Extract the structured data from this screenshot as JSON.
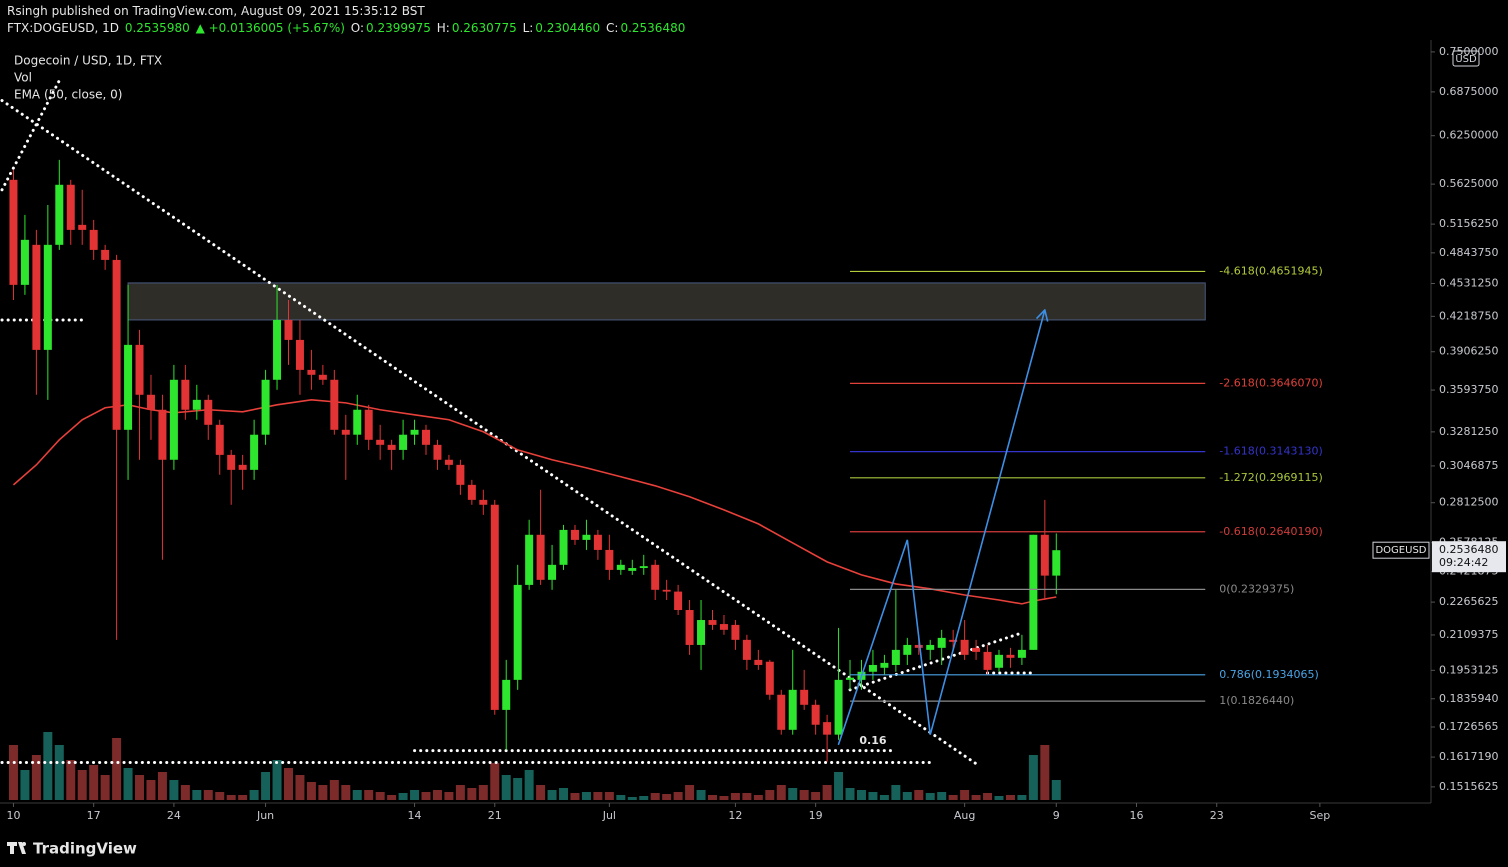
{
  "header": {
    "published": "Rsingh published on TradingView.com, August 09, 2021 15:35:12 BST",
    "symbol": "FTX:DOGEUSD, 1D",
    "last": "0.2535980",
    "change": "▲ +0.0136005 (+5.67%)",
    "ohlc_labels": [
      "O:",
      "H:",
      "L:",
      "C:"
    ],
    "ohlc_values": [
      "0.2399975",
      "0.2630775",
      "0.2304460",
      "0.2536480"
    ]
  },
  "chart_data": {
    "type": "candlestick",
    "title": "Dogecoin / USD, 1D, FTX",
    "legend_items": [
      "Vol",
      "EMA (50, close, 0)"
    ],
    "currency": "USD",
    "log_scale": true,
    "grid": false,
    "up_color": "#2ee62e",
    "down_color": "#e23434",
    "x": [
      "2021-05-10",
      "2021-05-11",
      "2021-05-12",
      "2021-05-13",
      "2021-05-14",
      "2021-05-15",
      "2021-05-16",
      "2021-05-17",
      "2021-05-18",
      "2021-05-19",
      "2021-05-20",
      "2021-05-21",
      "2021-05-22",
      "2021-05-23",
      "2021-05-24",
      "2021-05-25",
      "2021-05-26",
      "2021-05-27",
      "2021-05-28",
      "2021-05-29",
      "2021-05-30",
      "2021-05-31",
      "2021-06-01",
      "2021-06-02",
      "2021-06-03",
      "2021-06-04",
      "2021-06-05",
      "2021-06-06",
      "2021-06-07",
      "2021-06-08",
      "2021-06-09",
      "2021-06-10",
      "2021-06-11",
      "2021-06-12",
      "2021-06-13",
      "2021-06-14",
      "2021-06-15",
      "2021-06-16",
      "2021-06-17",
      "2021-06-18",
      "2021-06-19",
      "2021-06-20",
      "2021-06-21",
      "2021-06-22",
      "2021-06-23",
      "2021-06-24",
      "2021-06-25",
      "2021-06-26",
      "2021-06-27",
      "2021-06-28",
      "2021-06-29",
      "2021-06-30",
      "2021-07-01",
      "2021-07-02",
      "2021-07-03",
      "2021-07-04",
      "2021-07-05",
      "2021-07-06",
      "2021-07-07",
      "2021-07-08",
      "2021-07-09",
      "2021-07-10",
      "2021-07-11",
      "2021-07-12",
      "2021-07-13",
      "2021-07-14",
      "2021-07-15",
      "2021-07-16",
      "2021-07-17",
      "2021-07-18",
      "2021-07-19",
      "2021-07-20",
      "2021-07-21",
      "2021-07-22",
      "2021-07-23",
      "2021-07-24",
      "2021-07-25",
      "2021-07-26",
      "2021-07-27",
      "2021-07-28",
      "2021-07-29",
      "2021-07-30",
      "2021-07-31",
      "2021-08-01",
      "2021-08-02",
      "2021-08-03",
      "2021-08-04",
      "2021-08-05",
      "2021-08-06",
      "2021-08-07",
      "2021-08-08",
      "2021-08-09"
    ],
    "open": [
      0.5678,
      0.4518,
      0.4929,
      0.3922,
      0.4929,
      0.5617,
      0.5148,
      0.5092,
      0.4875,
      0.477,
      0.3296,
      0.3965,
      0.3557,
      0.3443,
      0.3088,
      0.3675,
      0.3443,
      0.3518,
      0.3332,
      0.3121,
      0.3054,
      0.3021,
      0.3261,
      0.3675,
      0.4186,
      0.4008,
      0.3755,
      0.3715,
      0.3675,
      0.3296,
      0.3261,
      0.3443,
      0.3225,
      0.319,
      0.3155,
      0.3261,
      0.3296,
      0.319,
      0.3088,
      0.3054,
      0.2924,
      0.283,
      0.28,
      0.1792,
      0.1913,
      0.2352,
      0.2623,
      0.2378,
      0.2457,
      0.2651,
      0.2594,
      0.2623,
      0.2538,
      0.243,
      0.2425,
      0.244,
      0.2457,
      0.2327,
      0.2318,
      0.2227,
      0.2064,
      0.2179,
      0.216,
      0.2156,
      0.2087,
      0.1998,
      0.199,
      0.1852,
      0.1716,
      0.1872,
      0.1812,
      0.1745,
      0.1698,
      0.1913,
      0.1913,
      0.1947,
      0.1964,
      0.1976,
      0.202,
      0.2064,
      0.2042,
      0.2051,
      0.2087,
      0.2087,
      0.2051,
      0.2033,
      0.1964,
      0.202,
      0.2007,
      0.2042,
      0.2623,
      0.2399975
    ],
    "high": [
      0.5803,
      0.5261,
      0.5092,
      0.5376,
      0.593,
      0.5678,
      0.5556,
      0.5204,
      0.4929,
      0.4822,
      0.4518,
      0.4096,
      0.3715,
      0.3557,
      0.3796,
      0.3796,
      0.3635,
      0.3557,
      0.3369,
      0.3155,
      0.3121,
      0.3369,
      0.3755,
      0.4518,
      0.4372,
      0.4186,
      0.3922,
      0.3796,
      0.3755,
      0.3405,
      0.3557,
      0.348,
      0.3332,
      0.3225,
      0.3369,
      0.3369,
      0.3332,
      0.3225,
      0.3121,
      0.3088,
      0.2956,
      0.2893,
      0.283,
      0.1998,
      0.2457,
      0.271,
      0.2893,
      0.2566,
      0.268,
      0.268,
      0.271,
      0.2651,
      0.2623,
      0.2484,
      0.2484,
      0.2511,
      0.2484,
      0.2378,
      0.2352,
      0.2276,
      0.2276,
      0.2227,
      0.2203,
      0.2179,
      0.211,
      0.2042,
      0.1998,
      0.1872,
      0.2042,
      0.1955,
      0.1832,
      0.1773,
      0.2142,
      0.1998,
      0.1998,
      0.2042,
      0.202,
      0.2327,
      0.2096,
      0.211,
      0.2087,
      0.2133,
      0.2133,
      0.2179,
      0.2087,
      0.2064,
      0.2042,
      0.2051,
      0.211,
      0.2623,
      0.283,
      0.2630775
    ],
    "low": [
      0.4372,
      0.4421,
      0.3557,
      0.3518,
      0.4875,
      0.4929,
      0.4929,
      0.477,
      0.4668,
      0.2087,
      0.2956,
      0.3088,
      0.3225,
      0.2484,
      0.3021,
      0.3369,
      0.3369,
      0.3225,
      0.2989,
      0.28,
      0.2893,
      0.2956,
      0.319,
      0.3596,
      0.3796,
      0.3557,
      0.3596,
      0.3635,
      0.3261,
      0.2956,
      0.319,
      0.3155,
      0.3088,
      0.3021,
      0.3088,
      0.319,
      0.3121,
      0.3021,
      0.3021,
      0.2861,
      0.28,
      0.2739,
      0.1773,
      0.1643,
      0.1872,
      0.2327,
      0.2352,
      0.2327,
      0.243,
      0.2566,
      0.2538,
      0.2484,
      0.2378,
      0.2404,
      0.2404,
      0.2404,
      0.2276,
      0.2276,
      0.2203,
      0.202,
      0.1955,
      0.2133,
      0.211,
      0.2042,
      0.1955,
      0.1955,
      0.1832,
      0.1698,
      0.1698,
      0.1792,
      0.1698,
      0.1601,
      0.1679,
      0.1872,
      0.1872,
      0.1913,
      0.1934,
      0.1947,
      0.1976,
      0.202,
      0.1998,
      0.1976,
      0.2042,
      0.1998,
      0.1998,
      0.1934,
      0.1947,
      0.1964,
      0.1976,
      0.2042,
      0.2276,
      0.230446
    ],
    "close": [
      0.4518,
      0.4983,
      0.3922,
      0.4929,
      0.5617,
      0.5092,
      0.5092,
      0.4875,
      0.477,
      0.3296,
      0.3965,
      0.3557,
      0.3443,
      0.3088,
      0.3675,
      0.3443,
      0.3518,
      0.3332,
      0.3121,
      0.3021,
      0.3021,
      0.3261,
      0.3675,
      0.4186,
      0.4008,
      0.3755,
      0.3715,
      0.3675,
      0.3296,
      0.3261,
      0.3443,
      0.3225,
      0.319,
      0.3155,
      0.3261,
      0.3296,
      0.319,
      0.3088,
      0.3054,
      0.2924,
      0.283,
      0.28,
      0.1792,
      0.1913,
      0.2352,
      0.2623,
      0.2378,
      0.2457,
      0.2651,
      0.2594,
      0.2623,
      0.2538,
      0.243,
      0.2457,
      0.244,
      0.245,
      0.2327,
      0.2318,
      0.2227,
      0.2064,
      0.2179,
      0.2156,
      0.2133,
      0.2087,
      0.1998,
      0.1976,
      0.1852,
      0.1716,
      0.1872,
      0.1812,
      0.1735,
      0.1698,
      0.1913,
      0.1922,
      0.1947,
      0.1976,
      0.1985,
      0.2042,
      0.2064,
      0.2051,
      0.2064,
      0.2096,
      0.2078,
      0.202,
      0.2033,
      0.1955,
      0.202,
      0.2007,
      0.2042,
      0.2623,
      0.24,
      0.253648
    ],
    "volume": {
      "ylim": [
        0,
        100
      ],
      "up_color": "#16615a",
      "down_color": "#7d2a2a",
      "values": [
        55,
        30,
        45,
        68,
        55,
        40,
        30,
        35,
        25,
        62,
        32,
        25,
        20,
        28,
        20,
        15,
        10,
        10,
        8,
        5,
        5,
        10,
        28,
        40,
        32,
        25,
        18,
        15,
        20,
        15,
        10,
        10,
        8,
        5,
        7,
        10,
        8,
        10,
        8,
        15,
        12,
        15,
        37,
        25,
        22,
        30,
        15,
        10,
        12,
        7,
        8,
        8,
        8,
        5,
        3,
        4,
        7,
        6,
        8,
        15,
        10,
        5,
        4,
        7,
        7,
        5,
        10,
        15,
        12,
        10,
        8,
        15,
        28,
        12,
        10,
        8,
        5,
        15,
        8,
        10,
        7,
        8,
        5,
        10,
        5,
        7,
        4,
        5,
        5,
        45,
        55,
        20
      ]
    },
    "ema": {
      "color": "#e8403a",
      "x": [
        "2021-05-10",
        "2021-05-12",
        "2021-05-14",
        "2021-05-16",
        "2021-05-18",
        "2021-05-20",
        "2021-05-22",
        "2021-05-24",
        "2021-05-27",
        "2021-05-30",
        "2021-06-02",
        "2021-06-05",
        "2021-06-08",
        "2021-06-11",
        "2021-06-14",
        "2021-06-17",
        "2021-06-20",
        "2021-06-23",
        "2021-06-26",
        "2021-06-29",
        "2021-07-02",
        "2021-07-05",
        "2021-07-08",
        "2021-07-11",
        "2021-07-14",
        "2021-07-17",
        "2021-07-20",
        "2021-07-23",
        "2021-07-26",
        "2021-07-29",
        "2021-08-01",
        "2021-08-04",
        "2021-08-06",
        "2021-08-07",
        "2021-08-09"
      ],
      "values": [
        0.2924,
        0.3054,
        0.3225,
        0.3369,
        0.3458,
        0.348,
        0.3443,
        0.342,
        0.3443,
        0.3428,
        0.348,
        0.3518,
        0.3495,
        0.3443,
        0.3405,
        0.3369,
        0.3282,
        0.3155,
        0.3088,
        0.3034,
        0.2976,
        0.2918,
        0.2849,
        0.2769,
        0.2686,
        0.2577,
        0.2473,
        0.2404,
        0.2357,
        0.2332,
        0.2301,
        0.2276,
        0.2257,
        0.2271,
        0.2291
      ]
    },
    "xlim": [
      "2021-05-09",
      "2021-09-10"
    ],
    "xticks": [
      {
        "value": "2021-05-10",
        "label": "10"
      },
      {
        "value": "2021-05-17",
        "label": "17"
      },
      {
        "value": "2021-05-24",
        "label": "24"
      },
      {
        "value": "2021-06-01",
        "label": "Jun"
      },
      {
        "value": "2021-06-14",
        "label": "14"
      },
      {
        "value": "2021-06-21",
        "label": "21"
      },
      {
        "value": "2021-07-01",
        "label": "Jul"
      },
      {
        "value": "2021-07-12",
        "label": "12"
      },
      {
        "value": "2021-07-19",
        "label": "19"
      },
      {
        "value": "2021-08-01",
        "label": "Aug"
      },
      {
        "value": "2021-08-09",
        "label": "9"
      },
      {
        "value": "2021-08-16",
        "label": "16"
      },
      {
        "value": "2021-08-23",
        "label": "23"
      },
      {
        "value": "2021-09-01",
        "label": "Sep"
      }
    ],
    "ylim": [
      0.1473,
      0.763
    ],
    "yticks": [
      {
        "value": 0.75,
        "label": "0.7500000"
      },
      {
        "value": 0.6875,
        "label": "0.6875000"
      },
      {
        "value": 0.625,
        "label": "0.6250000"
      },
      {
        "value": 0.5625,
        "label": "0.5625000"
      },
      {
        "value": 0.515625,
        "label": "0.5156250"
      },
      {
        "value": 0.484375,
        "label": "0.4843750"
      },
      {
        "value": 0.453125,
        "label": "0.4531250"
      },
      {
        "value": 0.421875,
        "label": "0.4218750"
      },
      {
        "value": 0.390625,
        "label": "0.3906250"
      },
      {
        "value": 0.359375,
        "label": "0.3593750"
      },
      {
        "value": 0.328125,
        "label": "0.3281250"
      },
      {
        "value": 0.3046875,
        "label": "0.3046875"
      },
      {
        "value": 0.28125,
        "label": "0.2812500"
      },
      {
        "value": 0.2578125,
        "label": "0.2578125"
      },
      {
        "value": 0.2421875,
        "label": "0.2421875"
      },
      {
        "value": 0.2265625,
        "label": "0.2265625"
      },
      {
        "value": 0.2109375,
        "label": "0.2109375"
      },
      {
        "value": 0.1953125,
        "label": "0.1953125"
      },
      {
        "value": 0.183594,
        "label": "0.1835940"
      },
      {
        "value": 0.1726565,
        "label": "0.1726565"
      },
      {
        "value": 0.161719,
        "label": "0.1617190"
      },
      {
        "value": 0.1515625,
        "label": "0.1515625"
      }
    ],
    "fib_levels": [
      {
        "label": "-4.618(0.4651945)",
        "price": 0.4651945,
        "color": "#b3cc3c"
      },
      {
        "label": "-2.618(0.3646070)",
        "price": 0.364607,
        "color": "#e0413a"
      },
      {
        "label": "-1.618(0.3143130)",
        "price": 0.314313,
        "color": "#3434cc"
      },
      {
        "label": "-1.272(0.2969115)",
        "price": 0.2969115,
        "color": "#a8c63c"
      },
      {
        "label": "-0.618(0.2640190)",
        "price": 0.264019,
        "color": "#d23c3c"
      },
      {
        "label": "0(0.2329375)",
        "price": 0.2329375,
        "color": "#8a8a8a"
      },
      {
        "label": "0.786(0.1934065)",
        "price": 0.1934065,
        "color": "#4aa3e6"
      },
      {
        "label": "1(0.1826440)",
        "price": 0.182644,
        "color": "#8a8a8a"
      }
    ],
    "fib_from": "2021-07-22",
    "fib_to": "2021-08-22",
    "zone": {
      "from": "2021-05-20",
      "to": "2021-08-22",
      "top": 0.4537,
      "bottom": 0.4186
    },
    "drawings": [
      {
        "style": "dotted",
        "points": [
          {
            "x": "2021-05-09",
            "y": 0.6747
          },
          {
            "x": "2021-08-02",
            "y": 0.1594
          }
        ]
      },
      {
        "style": "dotted",
        "points": [
          {
            "x": "2021-05-09",
            "y": 0.5556
          },
          {
            "x": "2021-05-14",
            "y": 0.7047
          }
        ]
      },
      {
        "style": "dotted",
        "points": [
          {
            "x": "2021-05-09",
            "y": 0.4186
          },
          {
            "x": "2021-05-16",
            "y": 0.4186
          }
        ]
      },
      {
        "style": "dotted",
        "points": [
          {
            "x": "2021-05-09",
            "y": 0.1598
          },
          {
            "x": "2021-07-29",
            "y": 0.1598
          }
        ]
      },
      {
        "style": "dotted",
        "points": [
          {
            "x": "2021-06-14",
            "y": 0.164
          },
          {
            "x": "2021-07-26",
            "y": 0.164
          }
        ]
      },
      {
        "style": "dotted",
        "points": [
          {
            "x": "2021-08-03",
            "y": 0.1942
          },
          {
            "x": "2021-08-07",
            "y": 0.1942
          }
        ]
      },
      {
        "style": "dotted",
        "points": [
          {
            "x": "2021-07-22",
            "y": 0.1872
          },
          {
            "x": "2021-08-06",
            "y": 0.2119
          }
        ]
      },
      {
        "style": "arrow",
        "color": "#3d8fe6",
        "points": [
          {
            "x": "2021-07-21",
            "y": 0.1663
          },
          {
            "x": "2021-07-27",
            "y": 0.2594
          },
          {
            "x": "2021-07-29",
            "y": 0.1698
          },
          {
            "x": "2021-08-08",
            "y": 0.4278
          }
        ]
      }
    ],
    "annotation": {
      "text": "0.16",
      "x": "2021-07-24",
      "y": 0.1675
    },
    "last_price": {
      "value": 0.253648,
      "label": "0.2536480",
      "symbol": "DOGEUSD",
      "countdown": "09:24:42"
    }
  },
  "footer": {
    "brand": "TradingView"
  }
}
